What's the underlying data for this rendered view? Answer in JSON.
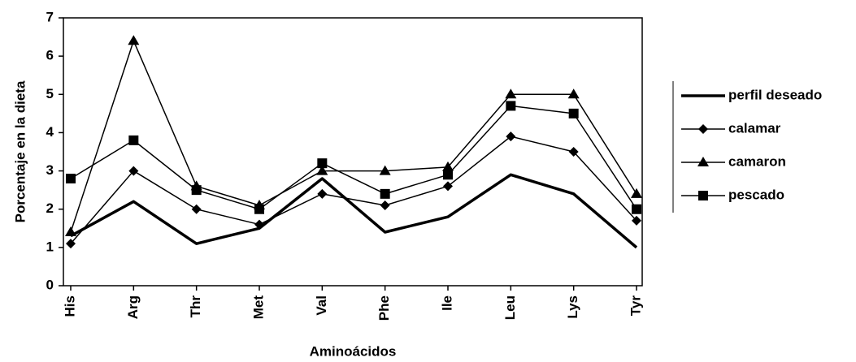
{
  "chart_data": {
    "type": "line",
    "x_label": "Aminoácidos",
    "y_label": "Porcentaje en la dieta",
    "categories": [
      "His",
      "Arg",
      "Thr",
      "Met",
      "Val",
      "Phe",
      "Ile",
      "Leu",
      "Lys",
      "Tyr"
    ],
    "series": [
      {
        "name": "perfil deseado",
        "color": "#000000",
        "marker": "none",
        "line_width": 3.5,
        "values": [
          1.3,
          2.2,
          1.1,
          1.5,
          2.8,
          1.4,
          1.8,
          2.9,
          2.4,
          1.0
        ]
      },
      {
        "name": "calamar",
        "color": "#000000",
        "marker": "diamond",
        "line_width": 1.5,
        "values": [
          1.1,
          3.0,
          2.0,
          1.6,
          2.4,
          2.1,
          2.6,
          3.9,
          3.5,
          1.7
        ]
      },
      {
        "name": "camaron",
        "color": "#000000",
        "marker": "triangle",
        "line_width": 1.5,
        "values": [
          1.4,
          6.4,
          2.6,
          2.1,
          3.0,
          3.0,
          3.1,
          5.0,
          5.0,
          2.4
        ]
      },
      {
        "name": "pescado",
        "color": "#000000",
        "marker": "square",
        "line_width": 1.5,
        "values": [
          2.8,
          3.8,
          2.5,
          2.0,
          3.2,
          2.4,
          2.9,
          4.7,
          4.5,
          2.0
        ]
      }
    ],
    "ylim": [
      0,
      7
    ],
    "yticks": [
      0,
      1,
      2,
      3,
      4,
      5,
      6,
      7
    ],
    "grid": false
  }
}
